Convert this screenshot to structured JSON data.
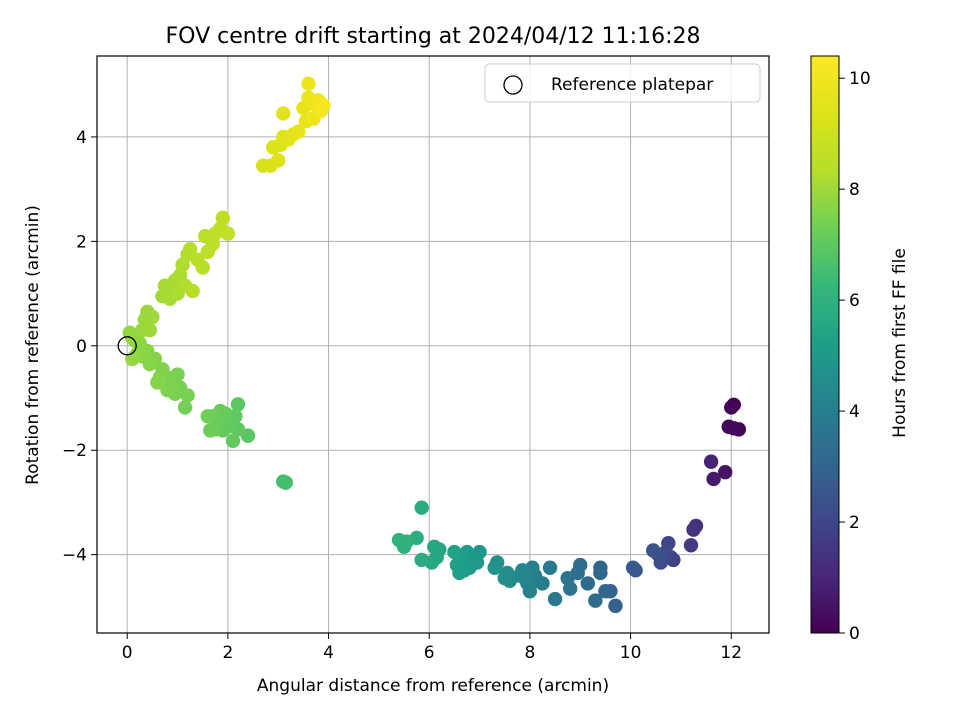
{
  "chart_data": {
    "type": "scatter",
    "title": "FOV centre drift starting at 2024/04/12 11:16:28",
    "xlabel": "Angular distance from reference (arcmin)",
    "ylabel": "Rotation from reference (arcmin)",
    "xlim": [
      -0.6,
      12.75
    ],
    "ylim": [
      -5.5,
      5.55
    ],
    "xticks": [
      0,
      2,
      4,
      6,
      8,
      10,
      12
    ],
    "yticks": [
      -4,
      -2,
      0,
      2,
      4
    ],
    "xtick_labels": [
      "0",
      "2",
      "4",
      "6",
      "8",
      "10",
      "12"
    ],
    "ytick_labels": [
      "−4",
      "−2",
      "0",
      "2",
      "4"
    ],
    "grid": true,
    "legend": {
      "placement": "top-right",
      "entries": [
        "Reference platepar"
      ]
    },
    "reference_point": {
      "x": 0,
      "y": 0
    },
    "colorbar": {
      "label": "Hours from first FF file",
      "range": [
        0,
        10.4
      ],
      "ticks": [
        0,
        2,
        4,
        6,
        8,
        10
      ],
      "tick_labels": [
        "0",
        "2",
        "4",
        "6",
        "8",
        "10"
      ],
      "colormap": "viridis"
    },
    "points": [
      {
        "x": 12.05,
        "y": -1.13,
        "c": 0.0
      },
      {
        "x": 12.0,
        "y": -1.18,
        "c": 0.05
      },
      {
        "x": 12.15,
        "y": -1.6,
        "c": 0.1
      },
      {
        "x": 11.95,
        "y": -1.55,
        "c": 0.15
      },
      {
        "x": 12.05,
        "y": -1.58,
        "c": 0.2
      },
      {
        "x": 11.88,
        "y": -2.42,
        "c": 0.5
      },
      {
        "x": 11.65,
        "y": -2.55,
        "c": 0.7
      },
      {
        "x": 11.6,
        "y": -2.22,
        "c": 0.9
      },
      {
        "x": 11.3,
        "y": -3.45,
        "c": 1.3
      },
      {
        "x": 11.25,
        "y": -3.52,
        "c": 1.4
      },
      {
        "x": 11.2,
        "y": -3.82,
        "c": 1.6
      },
      {
        "x": 10.85,
        "y": -4.1,
        "c": 1.8
      },
      {
        "x": 10.8,
        "y": -4.05,
        "c": 1.9
      },
      {
        "x": 10.75,
        "y": -3.78,
        "c": 2.0
      },
      {
        "x": 10.7,
        "y": -3.95,
        "c": 2.1
      },
      {
        "x": 10.6,
        "y": -4.15,
        "c": 2.2
      },
      {
        "x": 10.55,
        "y": -4.0,
        "c": 2.3
      },
      {
        "x": 10.45,
        "y": -3.92,
        "c": 2.4
      },
      {
        "x": 10.1,
        "y": -4.3,
        "c": 2.6
      },
      {
        "x": 10.05,
        "y": -4.25,
        "c": 2.7
      },
      {
        "x": 9.7,
        "y": -4.98,
        "c": 2.9
      },
      {
        "x": 9.6,
        "y": -4.7,
        "c": 3.0
      },
      {
        "x": 9.5,
        "y": -4.7,
        "c": 3.05
      },
      {
        "x": 9.4,
        "y": -4.25,
        "c": 3.1
      },
      {
        "x": 9.4,
        "y": -4.35,
        "c": 3.15
      },
      {
        "x": 9.3,
        "y": -4.88,
        "c": 3.2
      },
      {
        "x": 9.15,
        "y": -4.55,
        "c": 3.25
      },
      {
        "x": 9.0,
        "y": -4.2,
        "c": 3.3
      },
      {
        "x": 8.95,
        "y": -4.35,
        "c": 3.35
      },
      {
        "x": 8.8,
        "y": -4.65,
        "c": 3.5
      },
      {
        "x": 8.75,
        "y": -4.45,
        "c": 3.55
      },
      {
        "x": 8.5,
        "y": -4.85,
        "c": 3.7
      },
      {
        "x": 8.4,
        "y": -4.25,
        "c": 3.75
      },
      {
        "x": 8.25,
        "y": -4.55,
        "c": 3.9
      },
      {
        "x": 8.15,
        "y": -4.5,
        "c": 4.0
      },
      {
        "x": 8.1,
        "y": -4.4,
        "c": 4.05
      },
      {
        "x": 8.05,
        "y": -4.25,
        "c": 4.1
      },
      {
        "x": 8.0,
        "y": -4.7,
        "c": 4.15
      },
      {
        "x": 7.95,
        "y": -4.55,
        "c": 4.2
      },
      {
        "x": 7.9,
        "y": -4.45,
        "c": 4.25
      },
      {
        "x": 7.85,
        "y": -4.3,
        "c": 4.3
      },
      {
        "x": 7.8,
        "y": -4.4,
        "c": 4.35
      },
      {
        "x": 7.6,
        "y": -4.5,
        "c": 4.5
      },
      {
        "x": 7.55,
        "y": -4.35,
        "c": 4.55
      },
      {
        "x": 7.5,
        "y": -4.45,
        "c": 4.6
      },
      {
        "x": 7.35,
        "y": -4.15,
        "c": 4.7
      },
      {
        "x": 7.3,
        "y": -4.25,
        "c": 4.75
      },
      {
        "x": 7.0,
        "y": -3.95,
        "c": 4.9
      },
      {
        "x": 6.95,
        "y": -4.15,
        "c": 4.95
      },
      {
        "x": 6.85,
        "y": -4.1,
        "c": 5.0
      },
      {
        "x": 6.8,
        "y": -4.25,
        "c": 5.05
      },
      {
        "x": 6.75,
        "y": -3.95,
        "c": 5.1
      },
      {
        "x": 6.7,
        "y": -4.3,
        "c": 5.15
      },
      {
        "x": 6.65,
        "y": -4.05,
        "c": 5.2
      },
      {
        "x": 6.6,
        "y": -4.35,
        "c": 5.25
      },
      {
        "x": 6.55,
        "y": -4.2,
        "c": 5.3
      },
      {
        "x": 6.5,
        "y": -3.95,
        "c": 5.35
      },
      {
        "x": 6.2,
        "y": -3.9,
        "c": 5.5
      },
      {
        "x": 6.15,
        "y": -4.05,
        "c": 5.55
      },
      {
        "x": 6.1,
        "y": -3.85,
        "c": 5.6
      },
      {
        "x": 6.05,
        "y": -4.15,
        "c": 5.65
      },
      {
        "x": 5.85,
        "y": -3.1,
        "c": 5.75
      },
      {
        "x": 5.85,
        "y": -4.1,
        "c": 5.8
      },
      {
        "x": 5.75,
        "y": -3.68,
        "c": 5.85
      },
      {
        "x": 5.55,
        "y": -3.75,
        "c": 5.95
      },
      {
        "x": 5.5,
        "y": -3.85,
        "c": 6.0
      },
      {
        "x": 5.4,
        "y": -3.72,
        "c": 6.05
      },
      {
        "x": 3.1,
        "y": -2.6,
        "c": 6.5
      },
      {
        "x": 3.15,
        "y": -2.62,
        "c": 6.55
      },
      {
        "x": 2.4,
        "y": -1.72,
        "c": 6.9
      },
      {
        "x": 2.2,
        "y": -1.12,
        "c": 6.95
      },
      {
        "x": 2.2,
        "y": -1.6,
        "c": 7.0
      },
      {
        "x": 2.15,
        "y": -1.35,
        "c": 7.02
      },
      {
        "x": 2.1,
        "y": -1.82,
        "c": 7.05
      },
      {
        "x": 2.0,
        "y": -1.55,
        "c": 7.08
      },
      {
        "x": 1.95,
        "y": -1.3,
        "c": 7.1
      },
      {
        "x": 1.9,
        "y": -1.62,
        "c": 7.12
      },
      {
        "x": 1.85,
        "y": -1.25,
        "c": 7.15
      },
      {
        "x": 1.8,
        "y": -1.4,
        "c": 7.17
      },
      {
        "x": 1.75,
        "y": -1.6,
        "c": 7.2
      },
      {
        "x": 1.7,
        "y": -1.35,
        "c": 7.22
      },
      {
        "x": 1.65,
        "y": -1.62,
        "c": 7.25
      },
      {
        "x": 1.6,
        "y": -1.35,
        "c": 7.28
      },
      {
        "x": 1.15,
        "y": -1.18,
        "c": 7.35
      },
      {
        "x": 1.2,
        "y": -0.95,
        "c": 7.38
      },
      {
        "x": 1.05,
        "y": -0.8,
        "c": 7.4
      },
      {
        "x": 1.0,
        "y": -0.55,
        "c": 7.42
      },
      {
        "x": 0.95,
        "y": -0.92,
        "c": 7.45
      },
      {
        "x": 0.9,
        "y": -0.75,
        "c": 7.47
      },
      {
        "x": 0.85,
        "y": -0.62,
        "c": 7.5
      },
      {
        "x": 0.8,
        "y": -0.85,
        "c": 7.52
      },
      {
        "x": 0.7,
        "y": -0.45,
        "c": 7.55
      },
      {
        "x": 0.65,
        "y": -0.6,
        "c": 7.57
      },
      {
        "x": 0.6,
        "y": -0.7,
        "c": 7.6
      },
      {
        "x": 0.55,
        "y": -0.25,
        "c": 7.62
      },
      {
        "x": 0.45,
        "y": -0.35,
        "c": 7.65
      },
      {
        "x": 0.4,
        "y": -0.1,
        "c": 7.67
      },
      {
        "x": 0.3,
        "y": -0.2,
        "c": 7.7
      },
      {
        "x": 0.25,
        "y": 0.05,
        "c": 7.72
      },
      {
        "x": 0.2,
        "y": -0.15,
        "c": 7.75
      },
      {
        "x": 0.15,
        "y": 0.1,
        "c": 7.77
      },
      {
        "x": 0.1,
        "y": -0.25,
        "c": 7.8
      },
      {
        "x": 0.05,
        "y": 0.25,
        "c": 7.82
      },
      {
        "x": 0.1,
        "y": 0.15,
        "c": 7.84
      },
      {
        "x": 0.3,
        "y": 0.3,
        "c": 7.9
      },
      {
        "x": 0.35,
        "y": 0.5,
        "c": 7.92
      },
      {
        "x": 0.4,
        "y": 0.65,
        "c": 7.95
      },
      {
        "x": 0.5,
        "y": 0.55,
        "c": 7.97
      },
      {
        "x": 0.45,
        "y": 0.3,
        "c": 8.0
      },
      {
        "x": 0.7,
        "y": 0.95,
        "c": 8.05
      },
      {
        "x": 0.75,
        "y": 1.15,
        "c": 8.08
      },
      {
        "x": 0.85,
        "y": 0.9,
        "c": 8.1
      },
      {
        "x": 0.9,
        "y": 1.1,
        "c": 8.12
      },
      {
        "x": 0.95,
        "y": 1.25,
        "c": 8.15
      },
      {
        "x": 1.0,
        "y": 1.0,
        "c": 8.17
      },
      {
        "x": 1.05,
        "y": 1.35,
        "c": 8.2
      },
      {
        "x": 1.1,
        "y": 1.55,
        "c": 8.22
      },
      {
        "x": 1.15,
        "y": 1.15,
        "c": 8.25
      },
      {
        "x": 1.2,
        "y": 1.75,
        "c": 8.27
      },
      {
        "x": 1.25,
        "y": 1.85,
        "c": 8.3
      },
      {
        "x": 1.3,
        "y": 1.05,
        "c": 8.32
      },
      {
        "x": 1.4,
        "y": 1.65,
        "c": 8.4
      },
      {
        "x": 1.5,
        "y": 1.5,
        "c": 8.42
      },
      {
        "x": 1.55,
        "y": 2.1,
        "c": 8.45
      },
      {
        "x": 1.6,
        "y": 1.8,
        "c": 8.47
      },
      {
        "x": 1.7,
        "y": 1.95,
        "c": 8.5
      },
      {
        "x": 1.75,
        "y": 2.15,
        "c": 8.52
      },
      {
        "x": 1.85,
        "y": 2.25,
        "c": 8.55
      },
      {
        "x": 1.9,
        "y": 2.45,
        "c": 8.57
      },
      {
        "x": 2.0,
        "y": 2.15,
        "c": 8.6
      },
      {
        "x": 2.7,
        "y": 3.45,
        "c": 9.2
      },
      {
        "x": 2.85,
        "y": 3.45,
        "c": 9.25
      },
      {
        "x": 2.9,
        "y": 3.8,
        "c": 9.3
      },
      {
        "x": 3.0,
        "y": 3.55,
        "c": 9.35
      },
      {
        "x": 3.05,
        "y": 3.85,
        "c": 9.4
      },
      {
        "x": 3.1,
        "y": 4.0,
        "c": 9.45
      },
      {
        "x": 3.1,
        "y": 4.45,
        "c": 9.5
      },
      {
        "x": 3.2,
        "y": 3.95,
        "c": 9.55
      },
      {
        "x": 3.3,
        "y": 4.05,
        "c": 9.6
      },
      {
        "x": 3.4,
        "y": 4.1,
        "c": 9.65
      },
      {
        "x": 3.5,
        "y": 4.55,
        "c": 9.7
      },
      {
        "x": 3.55,
        "y": 4.3,
        "c": 9.75
      },
      {
        "x": 3.6,
        "y": 4.75,
        "c": 9.8
      },
      {
        "x": 3.6,
        "y": 5.02,
        "c": 9.85
      },
      {
        "x": 3.7,
        "y": 4.35,
        "c": 9.9
      },
      {
        "x": 3.75,
        "y": 4.6,
        "c": 9.95
      },
      {
        "x": 3.8,
        "y": 4.7,
        "c": 10.0
      },
      {
        "x": 3.85,
        "y": 4.5,
        "c": 10.1
      },
      {
        "x": 3.9,
        "y": 4.6,
        "c": 10.2
      }
    ]
  }
}
